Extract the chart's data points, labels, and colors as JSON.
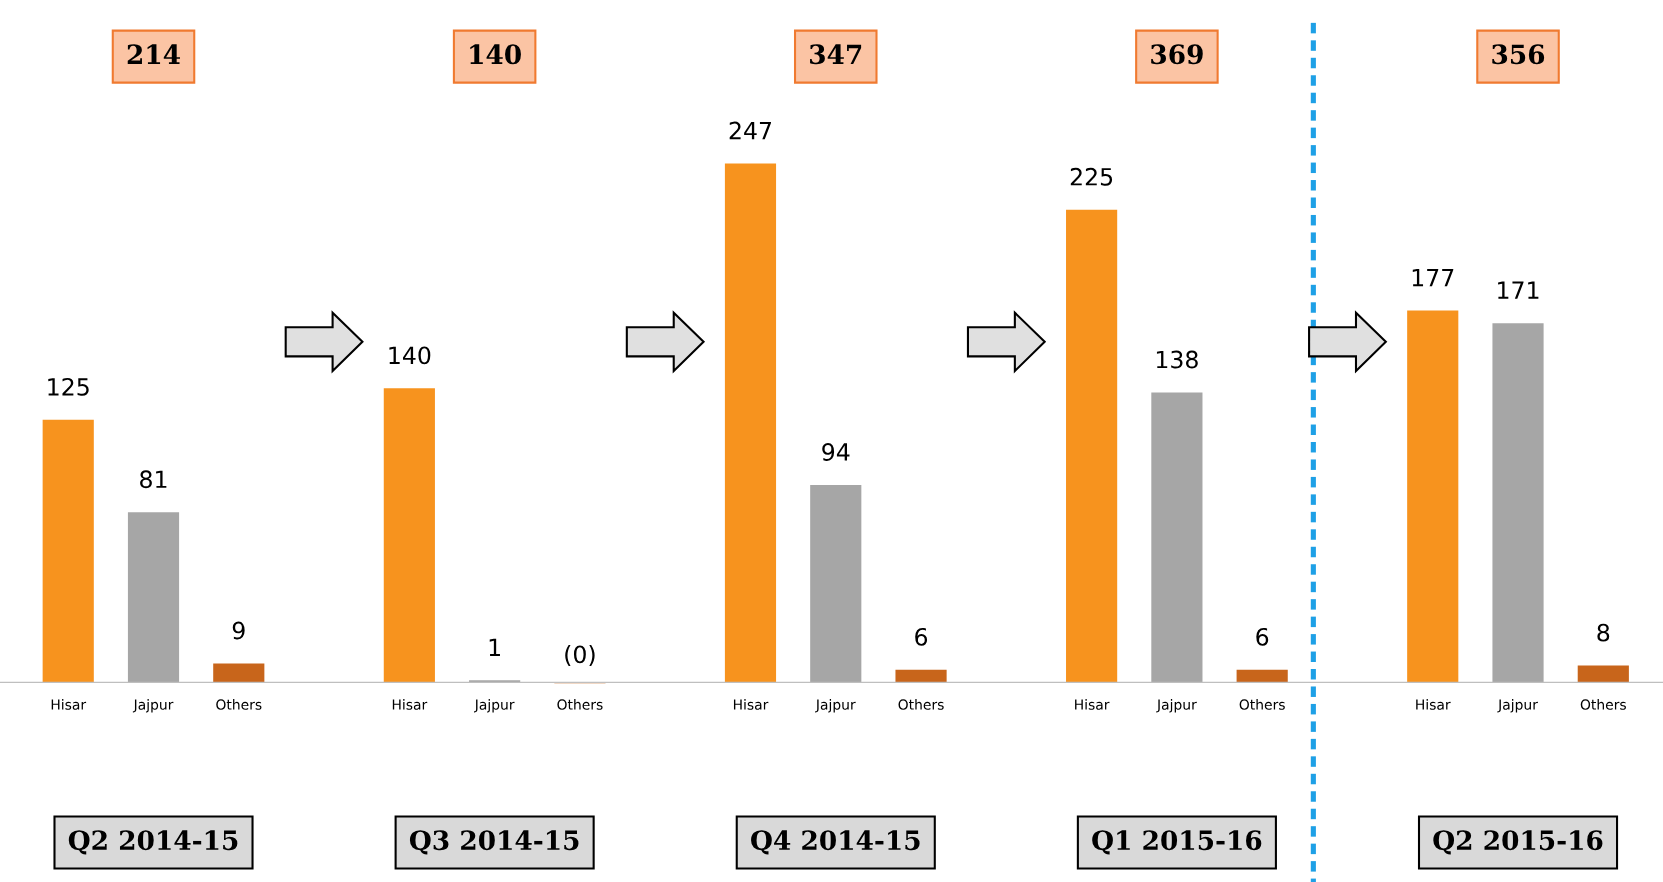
{
  "chart_data": {
    "type": "bar",
    "categories": [
      "Hisar",
      "Jajpur",
      "Others",
      null,
      "Hisar",
      "Jajpur",
      "Others",
      null,
      "Hisar",
      "Jajpur",
      "Others",
      null,
      "Hisar",
      "Jajpur",
      "Others",
      null,
      "Hisar",
      "Jajpur",
      "Others"
    ],
    "values": [
      125,
      81,
      9,
      null,
      140,
      1,
      -0.4,
      null,
      247,
      94,
      6,
      null,
      225,
      138,
      6,
      null,
      177,
      171,
      8
    ],
    "value_labels": [
      "125",
      "81",
      "9",
      null,
      "140",
      "1",
      "(0)",
      null,
      "247",
      "94",
      "6",
      null,
      "225",
      "138",
      "6",
      null,
      "177",
      "171",
      "8"
    ],
    "colors": [
      "#f7931e",
      "#a6a6a6",
      "#c8651b",
      null,
      "#f7931e",
      "#a6a6a6",
      "#c8651b",
      null,
      "#f7931e",
      "#a6a6a6",
      "#c8651b",
      null,
      "#f7931e",
      "#a6a6a6",
      "#c8651b",
      null,
      "#f7931e",
      "#a6a6a6",
      "#c8651b"
    ],
    "annotations": [
      "214",
      "140",
      "347",
      "369",
      "356",
      "Q2 2014-15",
      "Q3 2014-15",
      "Q4 2014-15",
      "Q1 2015-16",
      "Q2 2015-16"
    ],
    "grid": false,
    "legend": false
  }
}
